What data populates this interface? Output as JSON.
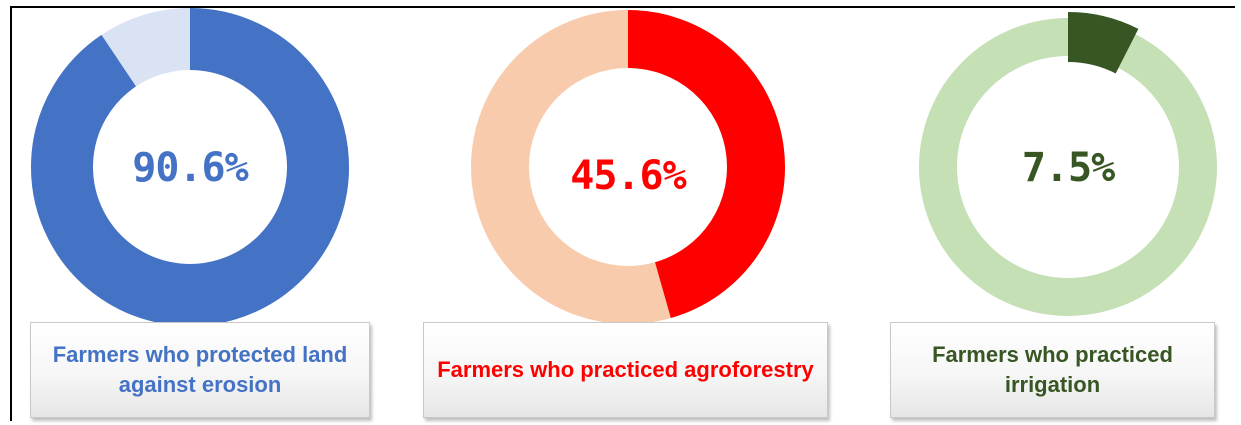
{
  "caption": "",
  "chart_data": [
    {
      "type": "donut",
      "value_percent": 90.6,
      "value_label": "90.6%",
      "title": "Farmers who protected land against erosion",
      "colors": {
        "filled": "#4472C4",
        "remaining": "#DAE3F3",
        "text": "#4472C4"
      }
    },
    {
      "type": "donut",
      "value_percent": 45.6,
      "value_label": "45.6%",
      "title": "Farmers who practiced agroforestry",
      "colors": {
        "filled": "#FF0000",
        "remaining": "#F8CBAD",
        "text": "#FF0000"
      }
    },
    {
      "type": "donut",
      "value_percent": 7.5,
      "value_label": "7.5%",
      "title": "Farmers who practiced irrigation",
      "colors": {
        "filled": "#375623",
        "remaining": "#C5E0B4",
        "text": "#375623"
      }
    }
  ]
}
